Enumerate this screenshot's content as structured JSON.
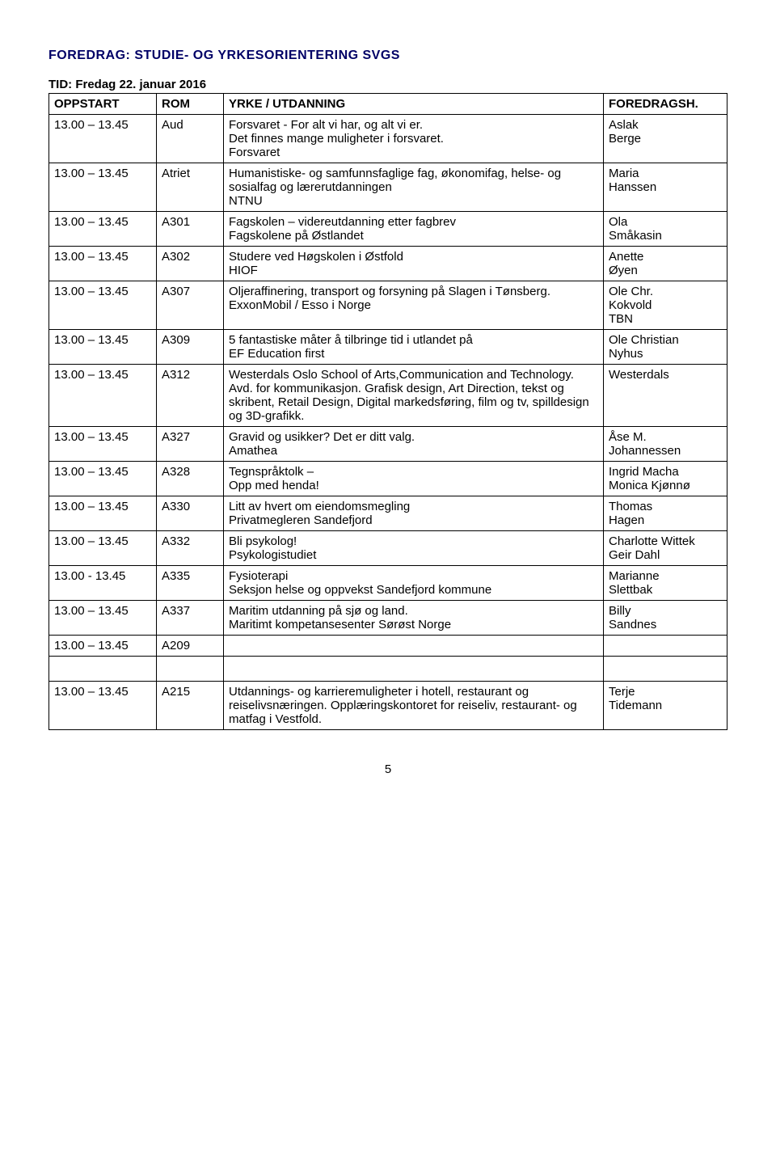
{
  "title": "FOREDRAG: STUDIE- OG YRKESORIENTERING SVGS",
  "timeLine": "TID: Fredag 22. januar 2016",
  "headers": {
    "oppstart": "OPPSTART",
    "rom": "ROM",
    "yrke": "YRKE / UTDANNING",
    "foredrag": "FOREDRAGSH."
  },
  "rows": [
    {
      "oppstart": "13.00 – 13.45",
      "rom": "Aud",
      "yrke": "Forsvaret - For alt vi har, og alt vi er.\nDet finnes mange muligheter i forsvaret.\nForsvaret",
      "foredrag": "Aslak\nBerge"
    },
    {
      "oppstart": "13.00 – 13.45",
      "rom": "Atriet",
      "yrke": "Humanistiske- og samfunnsfaglige fag, økonomifag, helse- og sosialfag og lærerutdanningen\nNTNU",
      "foredrag": "Maria\nHanssen"
    },
    {
      "oppstart": "13.00 – 13.45",
      "rom": "A301",
      "yrke": "Fagskolen – videreutdanning etter fagbrev\nFagskolene på Østlandet",
      "foredrag": "Ola\nSmåkasin"
    },
    {
      "oppstart": "13.00 – 13.45",
      "rom": "A302",
      "yrke": "Studere ved Høgskolen i Østfold\nHIOF",
      "foredrag": "Anette\nØyen"
    },
    {
      "oppstart": "13.00 – 13.45",
      "rom": "A307",
      "yrke": "Oljeraffinering, transport og forsyning på Slagen i Tønsberg.\nExxonMobil / Esso i Norge",
      "foredrag": "Ole Chr.\nKokvold\nTBN"
    },
    {
      "oppstart": "13.00 – 13.45",
      "rom": "A309",
      "yrke": "5 fantastiske måter å tilbringe tid i utlandet på\nEF Education first",
      "foredrag": "Ole Christian\nNyhus"
    },
    {
      "oppstart": "13.00 – 13.45",
      "rom": "A312",
      "yrke": "Westerdals Oslo School of Arts,Communication and Technology. Avd. for kommunikasjon. Grafisk design, Art Direction, tekst og skribent, Retail Design, Digital markedsføring, film og tv, spilldesign og 3D-grafikk.",
      "foredrag": "Westerdals"
    },
    {
      "oppstart": "13.00 – 13.45",
      "rom": "A327",
      "yrke": "Gravid og usikker? Det er ditt valg.\nAmathea",
      "foredrag": "Åse M.\nJohannessen"
    },
    {
      "oppstart": "13.00 – 13.45",
      "rom": "A328",
      "yrke": "Tegnspråktolk –\nOpp med henda!",
      "foredrag": "Ingrid Macha\nMonica Kjønnø"
    },
    {
      "oppstart": "13.00 – 13.45",
      "rom": "A330",
      "yrke": "Litt av hvert om eiendomsmegling\nPrivatmegleren Sandefjord",
      "foredrag": "Thomas\nHagen"
    },
    {
      "oppstart": "13.00 – 13.45",
      "rom": "A332",
      "yrke": "Bli psykolog!\nPsykologistudiet",
      "foredrag": "Charlotte Wittek\nGeir Dahl"
    },
    {
      "oppstart": "13.00 - 13.45",
      "rom": "A335",
      "yrke": "Fysioterapi\nSeksjon helse og oppvekst Sandefjord kommune",
      "foredrag": "Marianne\nSlettbak"
    },
    {
      "oppstart": "13.00 – 13.45",
      "rom": "A337",
      "yrke": "Maritim utdanning på sjø og land.\nMaritimt kompetansesenter Sørøst Norge",
      "foredrag": "Billy\n Sandnes"
    },
    {
      "oppstart": "13.00 – 13.45",
      "rom": "A209",
      "yrke": "",
      "foredrag": ""
    },
    {
      "spacer": true
    },
    {
      "oppstart": "13.00 – 13.45",
      "rom": "A215",
      "yrke": "Utdannings- og karrieremuligheter i hotell, restaurant og reiselivsnæringen. Opplæringskontoret for reiseliv, restaurant- og matfag i Vestfold.",
      "foredrag": "Terje\nTidemann"
    }
  ],
  "pageNumber": "5"
}
